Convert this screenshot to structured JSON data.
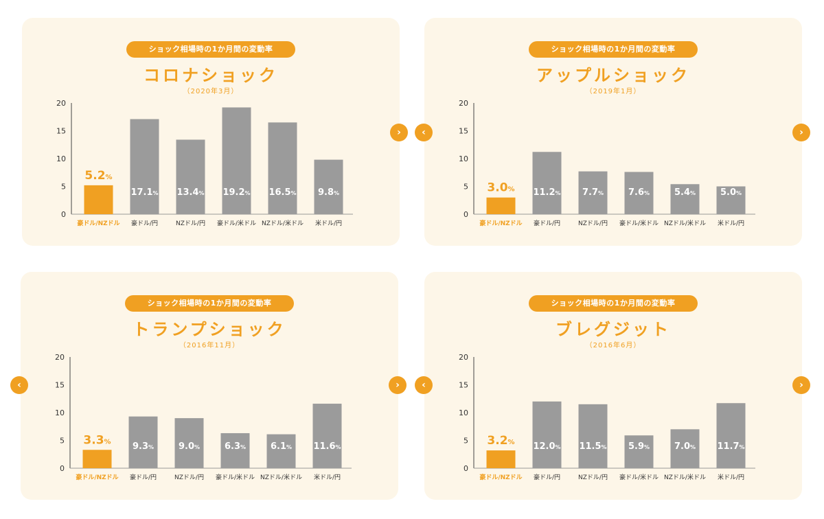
{
  "colors": {
    "accent": "#f0a022",
    "bar": "#9b9b9b",
    "axis": "#444444",
    "card": "#fdf6e8"
  },
  "nav": {
    "prev_icon": "‹",
    "next_icon": "›"
  },
  "chart_data": [
    {
      "type": "bar",
      "header": "ショック相場時の1か月間の変動率",
      "title": "コロナショック",
      "subtitle": "（2020年3月）",
      "categories": [
        "豪ドル/NZドル",
        "豪ドル/円",
        "NZドル/円",
        "豪ドル/米ドル",
        "NZドル/米ドル",
        "米ドル/円"
      ],
      "values": [
        5.2,
        17.1,
        13.4,
        19.2,
        16.5,
        9.8
      ],
      "value_labels": [
        "5.2",
        "17.1",
        "13.4",
        "19.2",
        "16.5",
        "9.8"
      ],
      "unit": "%",
      "highlight_index": 0,
      "ylim": [
        0,
        20
      ],
      "yticks": [
        "0",
        "5",
        "10",
        "15",
        "20"
      ]
    },
    {
      "type": "bar",
      "header": "ショック相場時の1か月間の変動率",
      "title": "アップルショック",
      "subtitle": "（2019年1月）",
      "categories": [
        "豪ドル/NZドル",
        "豪ドル/円",
        "NZドル/円",
        "豪ドル/米ドル",
        "NZドル/米ドル",
        "米ドル/円"
      ],
      "values": [
        3.0,
        11.2,
        7.7,
        7.6,
        5.4,
        5.0
      ],
      "value_labels": [
        "3.0",
        "11.2",
        "7.7",
        "7.6",
        "5.4",
        "5.0"
      ],
      "unit": "%",
      "highlight_index": 0,
      "ylim": [
        0,
        20
      ],
      "yticks": [
        "0",
        "5",
        "10",
        "15",
        "20"
      ]
    },
    {
      "type": "bar",
      "header": "ショック相場時の1か月間の変動率",
      "title": "トランプショック",
      "subtitle": "（2016年11月）",
      "categories": [
        "豪ドル/NZドル",
        "豪ドル/円",
        "NZドル/円",
        "豪ドル/米ドル",
        "NZドル/米ドル",
        "米ドル/円"
      ],
      "values": [
        3.3,
        9.3,
        9.0,
        6.3,
        6.1,
        11.6
      ],
      "value_labels": [
        "3.3",
        "9.3",
        "9.0",
        "6.3",
        "6.1",
        "11.6"
      ],
      "unit": "%",
      "highlight_index": 0,
      "ylim": [
        0,
        20
      ],
      "yticks": [
        "0",
        "5",
        "10",
        "15",
        "20"
      ]
    },
    {
      "type": "bar",
      "header": "ショック相場時の1か月間の変動率",
      "title": "ブレグジット",
      "subtitle": "（2016年6月）",
      "categories": [
        "豪ドル/NZドル",
        "豪ドル/円",
        "NZドル/円",
        "豪ドル/米ドル",
        "NZドル/米ドル",
        "米ドル/円"
      ],
      "values": [
        3.2,
        12.0,
        11.5,
        5.9,
        7.0,
        11.7
      ],
      "value_labels": [
        "3.2",
        "12.0",
        "11.5",
        "5.9",
        "7.0",
        "11.7"
      ],
      "unit": "%",
      "highlight_index": 0,
      "ylim": [
        0,
        20
      ],
      "yticks": [
        "0",
        "5",
        "10",
        "15",
        "20"
      ]
    }
  ]
}
